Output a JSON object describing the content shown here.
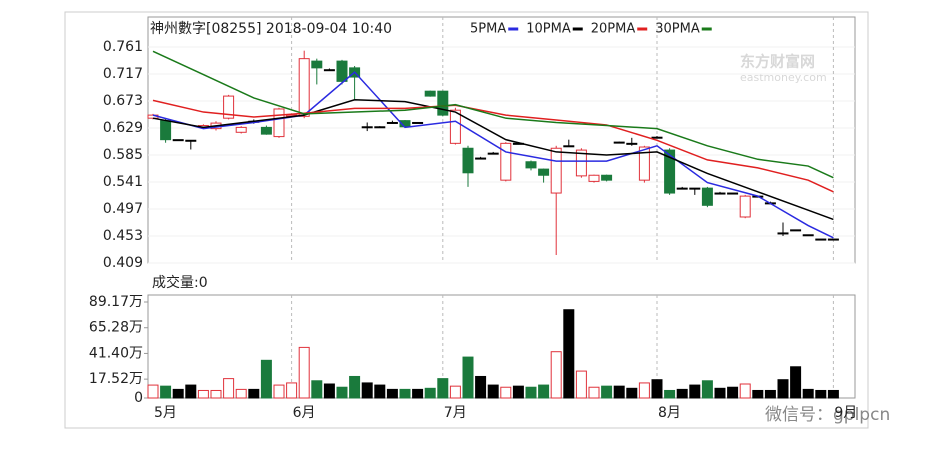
{
  "chart_data": {
    "type": "candlestick",
    "title": "神州數字[08255] 2018-09-04 10:40",
    "categories": [
      "5月",
      null,
      null,
      null,
      null,
      null,
      null,
      null,
      null,
      null,
      null,
      "6月",
      null,
      null,
      null,
      null,
      null,
      null,
      null,
      null,
      null,
      null,
      null,
      "7月",
      null,
      null,
      null,
      null,
      null,
      null,
      null,
      null,
      null,
      null,
      null,
      null,
      null,
      null,
      null,
      null,
      "8月",
      null,
      null,
      null,
      null,
      null,
      null,
      null,
      null,
      null,
      null,
      null,
      null,
      null,
      "9月"
    ],
    "open": [
      0.645,
      0.641,
      0.61,
      0.609,
      0.63,
      0.628,
      0.645,
      0.622,
      0.64,
      0.63,
      0.615,
      0.648,
      0.648,
      0.738,
      0.724,
      0.738,
      0.727,
      0.631,
      0.631,
      0.638,
      0.641,
      0.638,
      0.689,
      0.689,
      0.604,
      0.596,
      0.58,
      0.588,
      0.544,
      0.604,
      0.574,
      0.562,
      0.523,
      0.6,
      0.551,
      0.542,
      0.552,
      0.606,
      0.604,
      0.544,
      0.614,
      0.593,
      0.531,
      0.531,
      0.531,
      0.523,
      0.523,
      0.484,
      0.518,
      0.507,
      0.458,
      0.463,
      0.455,
      0.448,
      0.448
    ],
    "high": [
      0.652,
      0.645,
      0.61,
      0.609,
      0.635,
      0.64,
      0.683,
      0.632,
      0.643,
      0.633,
      0.662,
      0.652,
      0.755,
      0.742,
      0.726,
      0.74,
      0.73,
      0.638,
      0.632,
      0.641,
      0.642,
      0.638,
      0.69,
      0.69,
      0.662,
      0.6,
      0.582,
      0.59,
      0.606,
      0.606,
      0.576,
      0.563,
      0.6,
      0.61,
      0.596,
      0.553,
      0.553,
      0.607,
      0.613,
      0.6,
      0.616,
      0.596,
      0.533,
      0.531,
      0.533,
      0.525,
      0.523,
      0.52,
      0.518,
      0.509,
      0.475,
      0.463,
      0.455,
      0.448,
      0.448
    ],
    "low": [
      0.643,
      0.605,
      0.61,
      0.594,
      0.628,
      0.625,
      0.643,
      0.62,
      0.636,
      0.618,
      0.613,
      0.646,
      0.645,
      0.7,
      0.722,
      0.7,
      0.676,
      0.624,
      0.63,
      0.636,
      0.63,
      0.638,
      0.68,
      0.648,
      0.602,
      0.533,
      0.578,
      0.586,
      0.542,
      0.602,
      0.56,
      0.54,
      0.422,
      0.598,
      0.548,
      0.54,
      0.542,
      0.604,
      0.6,
      0.54,
      0.612,
      0.52,
      0.529,
      0.52,
      0.5,
      0.521,
      0.523,
      0.482,
      0.518,
      0.505,
      0.453,
      0.463,
      0.455,
      0.448,
      0.448
    ],
    "close": [
      0.65,
      0.61,
      0.61,
      0.609,
      0.633,
      0.637,
      0.681,
      0.63,
      0.64,
      0.619,
      0.66,
      0.65,
      0.742,
      0.727,
      0.724,
      0.705,
      0.712,
      0.631,
      0.631,
      0.638,
      0.631,
      0.638,
      0.681,
      0.65,
      0.658,
      0.556,
      0.58,
      0.588,
      0.604,
      0.604,
      0.564,
      0.552,
      0.596,
      0.6,
      0.593,
      0.552,
      0.544,
      0.606,
      0.604,
      0.598,
      0.614,
      0.523,
      0.531,
      0.531,
      0.503,
      0.523,
      0.523,
      0.518,
      0.518,
      0.507,
      0.458,
      0.463,
      0.455,
      0.448,
      0.448
    ],
    "up_color": "#e0313a",
    "down_color": "#1a7a3c",
    "flat_color": "#000000",
    "ylim": [
      0.409,
      0.761
    ],
    "yticks": [
      0.761,
      0.717,
      0.673,
      0.629,
      0.585,
      0.541,
      0.497,
      0.453,
      0.409
    ],
    "grid": true,
    "moving_averages": [
      {
        "name": "5PMA",
        "color": "#2a2ae0",
        "x": [
          0,
          4,
          8,
          12,
          16,
          20,
          24,
          28,
          32,
          36,
          40,
          44,
          48,
          52,
          54
        ],
        "values": [
          0.65,
          0.628,
          0.638,
          0.65,
          0.72,
          0.63,
          0.64,
          0.59,
          0.575,
          0.575,
          0.6,
          0.54,
          0.518,
          0.47,
          0.45
        ]
      },
      {
        "name": "10PMA",
        "color": "#000000",
        "x": [
          0,
          4,
          8,
          12,
          16,
          20,
          24,
          28,
          32,
          36,
          40,
          44,
          48,
          52,
          54
        ],
        "values": [
          0.645,
          0.63,
          0.64,
          0.65,
          0.675,
          0.672,
          0.655,
          0.61,
          0.59,
          0.585,
          0.59,
          0.555,
          0.525,
          0.495,
          0.48
        ]
      },
      {
        "name": "20PMA",
        "color": "#e02020",
        "x": [
          0,
          4,
          8,
          12,
          16,
          20,
          24,
          28,
          32,
          36,
          40,
          44,
          48,
          52,
          54
        ],
        "values": [
          0.674,
          0.655,
          0.647,
          0.653,
          0.661,
          0.661,
          0.666,
          0.65,
          0.642,
          0.634,
          0.609,
          0.577,
          0.564,
          0.544,
          0.525
        ]
      },
      {
        "name": "30PMA",
        "color": "#1a7a1a",
        "x": [
          0,
          4,
          8,
          12,
          16,
          20,
          24,
          28,
          32,
          36,
          40,
          44,
          48,
          52,
          54
        ],
        "values": [
          0.754,
          0.716,
          0.678,
          0.652,
          0.655,
          0.658,
          0.667,
          0.645,
          0.638,
          0.633,
          0.628,
          0.6,
          0.578,
          0.567,
          0.548
        ]
      }
    ],
    "volume": {
      "type": "bar",
      "label": "成交量:0",
      "values": [
        12,
        11,
        8,
        12,
        7,
        7,
        18,
        8,
        8,
        35,
        12,
        14,
        47,
        16,
        13,
        10,
        20,
        14,
        12,
        8,
        8,
        8,
        9,
        18,
        11,
        38,
        20,
        12,
        10,
        11,
        10,
        12,
        43,
        82,
        25,
        10,
        11,
        11,
        9,
        14,
        17,
        7,
        8,
        12,
        16,
        9,
        10,
        13,
        7,
        7,
        17,
        29,
        8,
        7,
        7
      ],
      "ylim": [
        0,
        89.17
      ],
      "yticks": [
        {
          "value": 89.17,
          "label": "89.17万"
        },
        {
          "value": 65.28,
          "label": "65.28万"
        },
        {
          "value": 41.4,
          "label": "41.40万"
        },
        {
          "value": 17.52,
          "label": "17.52万"
        },
        0
      ]
    },
    "watermarks": [
      "东方财富网",
      "eastmoney.com",
      "微信号：gplpcn"
    ]
  }
}
